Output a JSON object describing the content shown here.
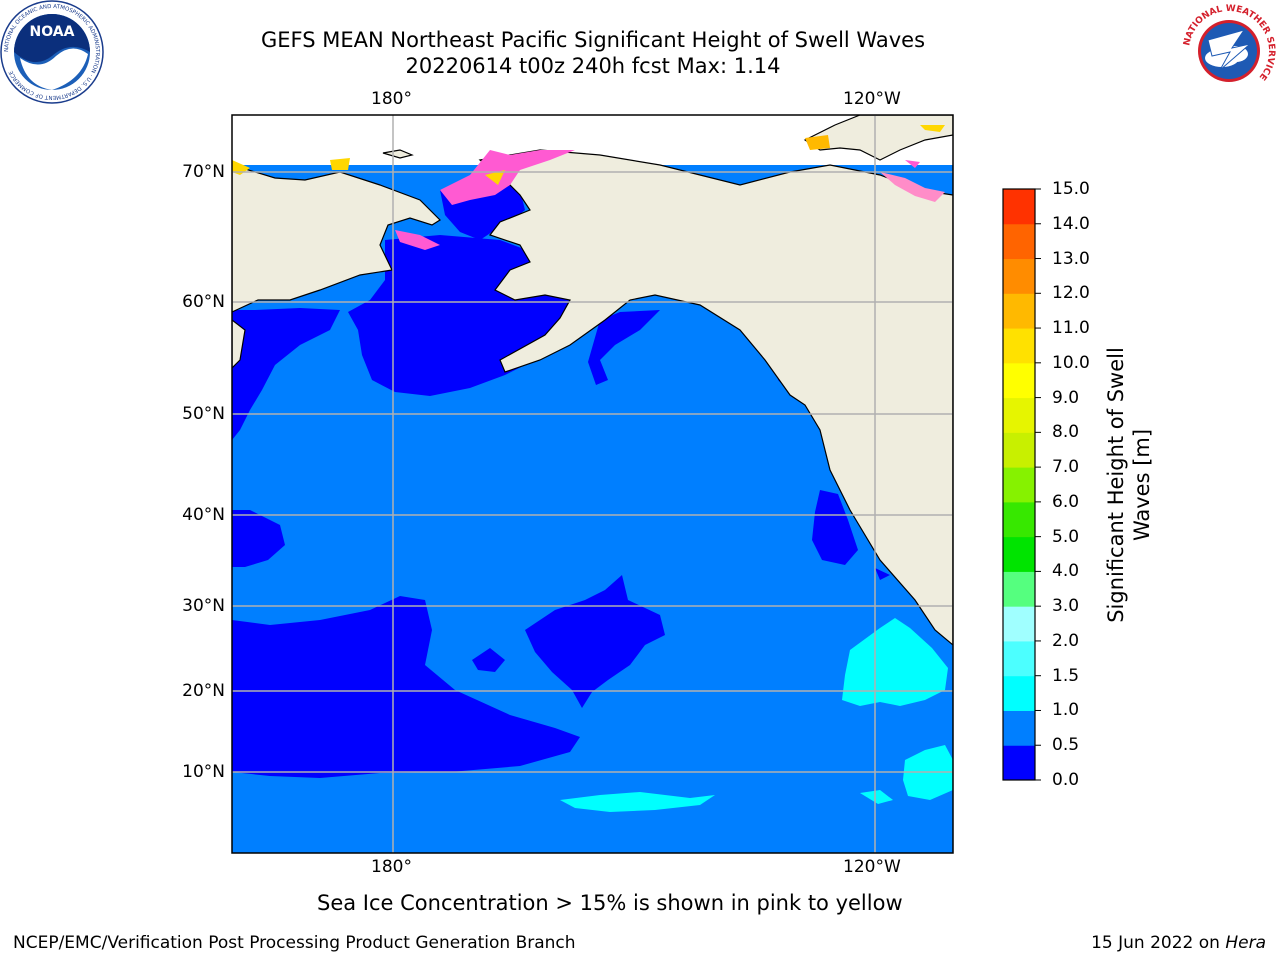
{
  "header": {
    "title_line1": "GEFS MEAN Northeast Pacific Significant Height of Swell Waves",
    "title_line2": "20220614 t00z 240h fcst   Max: 1.14"
  },
  "logos": {
    "noaa": {
      "text": "NOAA",
      "ring_text": "NATIONAL OCEANIC AND ATMOSPHERIC ADMINISTRATION · U.S. DEPARTMENT OF COMMERCE"
    },
    "nws": {
      "ring_text": "NATIONAL WEATHER SERVICE"
    }
  },
  "map": {
    "top_lon_labels": [
      "180°",
      "120°W"
    ],
    "bottom_lon_labels": [
      "180°",
      "120°W"
    ],
    "lat_labels": [
      "70°N",
      "60°N",
      "50°N",
      "40°N",
      "30°N",
      "20°N",
      "10°N"
    ],
    "colors": {
      "land": "#efedde",
      "ocean_0_0_5": "#0000ff",
      "ocean_0_5_1": "#007fff",
      "ocean_1_1_5": "#00ffff",
      "ice_pink": "#ff5ad2",
      "ice_yellow": "#ffd700",
      "grid": "#b0b0b0"
    }
  },
  "colorbar": {
    "label_line1": "Significant Height of Swell",
    "label_line2": "Waves [m]",
    "ticks": [
      "0.0",
      "0.5",
      "1.0",
      "1.5",
      "2.0",
      "3.0",
      "4.0",
      "5.0",
      "6.0",
      "7.0",
      "8.0",
      "9.0",
      "10.0",
      "11.0",
      "12.0",
      "13.0",
      "14.0",
      "15.0"
    ],
    "colors": [
      "#0000ff",
      "#007fff",
      "#00ffff",
      "#4cffff",
      "#a0ffff",
      "#55ff7f",
      "#00e400",
      "#37e800",
      "#86f200",
      "#c8f000",
      "#e6f500",
      "#ffff00",
      "#ffe100",
      "#ffb900",
      "#ff8c00",
      "#ff6400",
      "#ff3200",
      "#ff0000"
    ]
  },
  "footer": {
    "note": "Sea Ice Concentration > 15% is shown in pink to yellow",
    "credit_left": "NCEP/EMC/Verification Post Processing Product Generation Branch",
    "credit_right_date": "15 Jun 2022 on",
    "credit_right_machine": "Hera"
  }
}
